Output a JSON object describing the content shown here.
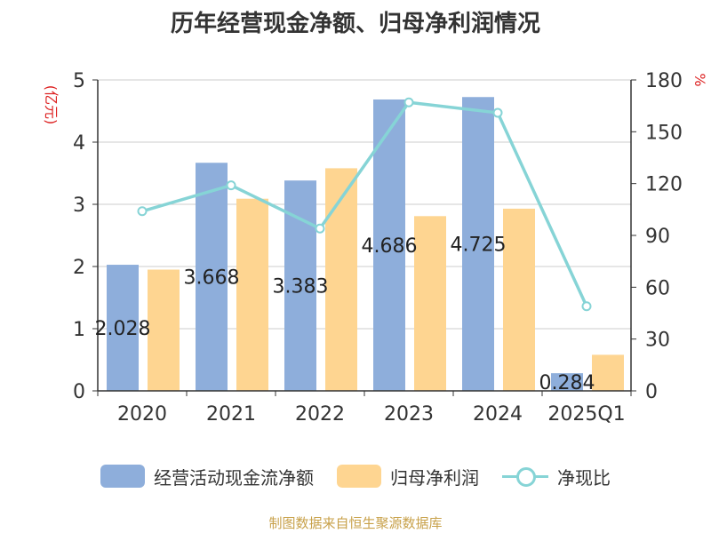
{
  "title": "历年经营现金净额、归母净利润情况",
  "left_unit": "(亿元)",
  "right_unit": "%",
  "source": "制图数据来自恒生聚源数据库",
  "legend": {
    "s1": "经营活动现金流净额",
    "s2": "归母净利润",
    "s3": "净现比"
  },
  "colors": {
    "s1": "#8eaedb",
    "s2": "#fed591",
    "s3": "#86d4d6",
    "unit": "#dd2222",
    "source": "#c8a14a"
  },
  "chart_data": {
    "type": "bar",
    "title": "历年经营现金净额、归母净利润情况",
    "categories": [
      "2020",
      "2021",
      "2022",
      "2023",
      "2024",
      "2025Q1"
    ],
    "ylim": [
      0,
      5
    ],
    "y_ticks": [
      0,
      1,
      2,
      3,
      4,
      5
    ],
    "y2lim": [
      0,
      180
    ],
    "y2_ticks": [
      0,
      30,
      60,
      90,
      120,
      150,
      180
    ],
    "series": [
      {
        "name": "经营活动现金流净额",
        "type": "bar",
        "axis": "left",
        "values": [
          2.028,
          3.668,
          3.383,
          4.686,
          4.725,
          0.284
        ],
        "labels": [
          "2.028",
          "3.668",
          "3.383",
          "4.686",
          "4.725",
          "0.284"
        ]
      },
      {
        "name": "归母净利润",
        "type": "bar",
        "axis": "left",
        "values": [
          1.95,
          3.09,
          3.58,
          2.81,
          2.93,
          0.58
        ]
      },
      {
        "name": "净现比",
        "type": "line",
        "axis": "right",
        "values": [
          104,
          119,
          94,
          167,
          161,
          49
        ]
      }
    ],
    "grid": true,
    "legend_position": "bottom"
  }
}
